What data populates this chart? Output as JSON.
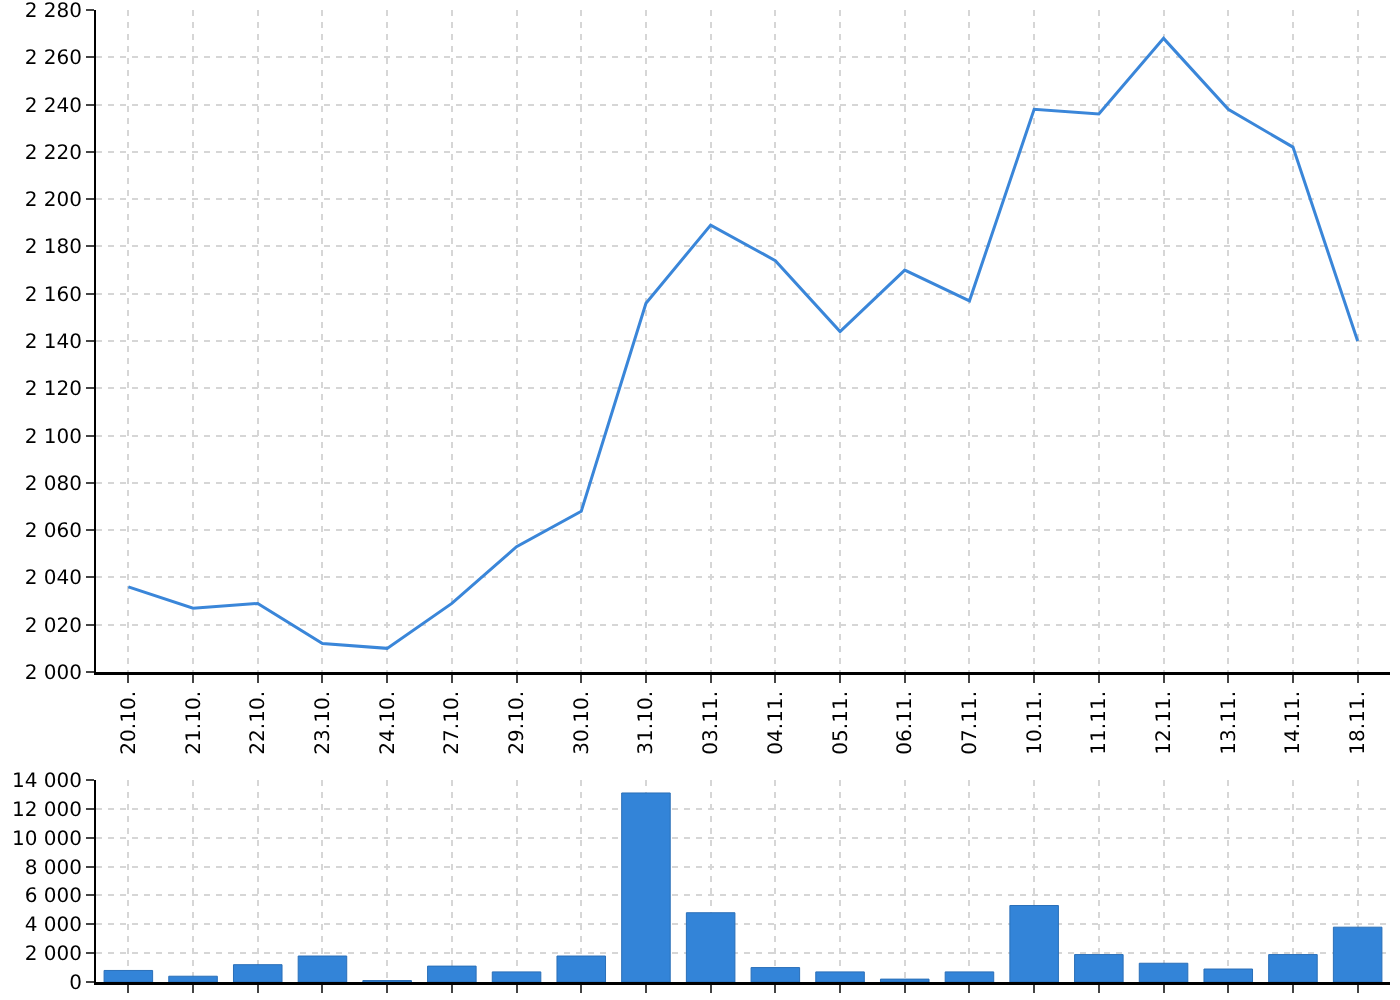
{
  "chart_data": [
    {
      "type": "line",
      "categories": [
        "20.10.",
        "21.10.",
        "22.10.",
        "23.10.",
        "24.10.",
        "27.10.",
        "29.10.",
        "30.10.",
        "31.10.",
        "03.11.",
        "04.11.",
        "05.11.",
        "06.11.",
        "07.11.",
        "10.11.",
        "11.11.",
        "12.11.",
        "13.11.",
        "14.11.",
        "18.11."
      ],
      "series": [
        {
          "color": "#3a86d9",
          "values": [
            2036,
            2027,
            2029,
            2012,
            2010,
            2029,
            2053,
            2068,
            2156,
            2189,
            2174,
            2144,
            2170,
            2157,
            2238,
            2236,
            2268,
            2238,
            2222,
            2140
          ]
        }
      ],
      "ylim": [
        2000,
        2280
      ],
      "yticks": [
        {
          "value": 2000,
          "label": "2 000"
        },
        {
          "value": 2020,
          "label": "2 020"
        },
        {
          "value": 2040,
          "label": "2 040"
        },
        {
          "value": 2060,
          "label": "2 060"
        },
        {
          "value": 2080,
          "label": "2 080"
        },
        {
          "value": 2100,
          "label": "2 100"
        },
        {
          "value": 2120,
          "label": "2 120"
        },
        {
          "value": 2140,
          "label": "2 140"
        },
        {
          "value": 2160,
          "label": "2 160"
        },
        {
          "value": 2180,
          "label": "2 180"
        },
        {
          "value": 2200,
          "label": "2 200"
        },
        {
          "value": 2220,
          "label": "2 220"
        },
        {
          "value": 2240,
          "label": "2 240"
        },
        {
          "value": 2260,
          "label": "2 260"
        },
        {
          "value": 2280,
          "label": "2 280"
        }
      ],
      "grid": true,
      "marker": "none",
      "line_style": "solid"
    },
    {
      "type": "bar",
      "categories": [
        "20.10.",
        "21.10.",
        "22.10.",
        "23.10.",
        "24.10.",
        "27.10.",
        "29.10.",
        "30.10.",
        "31.10.",
        "03.11.",
        "04.11.",
        "05.11.",
        "06.11.",
        "07.11.",
        "10.11.",
        "11.11.",
        "12.11.",
        "13.11.",
        "14.11.",
        "18.11."
      ],
      "series": [
        {
          "color": "#3384d8",
          "values": [
            800,
            400,
            1200,
            1800,
            100,
            1100,
            700,
            1800,
            13100,
            4800,
            1000,
            700,
            200,
            700,
            5300,
            1900,
            1300,
            900,
            1900,
            3800
          ]
        }
      ],
      "ylim": [
        0,
        14000
      ],
      "yticks": [
        {
          "value": 0,
          "label": "0"
        },
        {
          "value": 2000,
          "label": "2 000"
        },
        {
          "value": 4000,
          "label": "4 000"
        },
        {
          "value": 6000,
          "label": "6 000"
        },
        {
          "value": 8000,
          "label": "8 000"
        },
        {
          "value": 10000,
          "label": "10 000"
        },
        {
          "value": 12000,
          "label": "12 000"
        },
        {
          "value": 14000,
          "label": "14 000"
        }
      ],
      "grid": true,
      "tick_labels": "y"
    }
  ]
}
